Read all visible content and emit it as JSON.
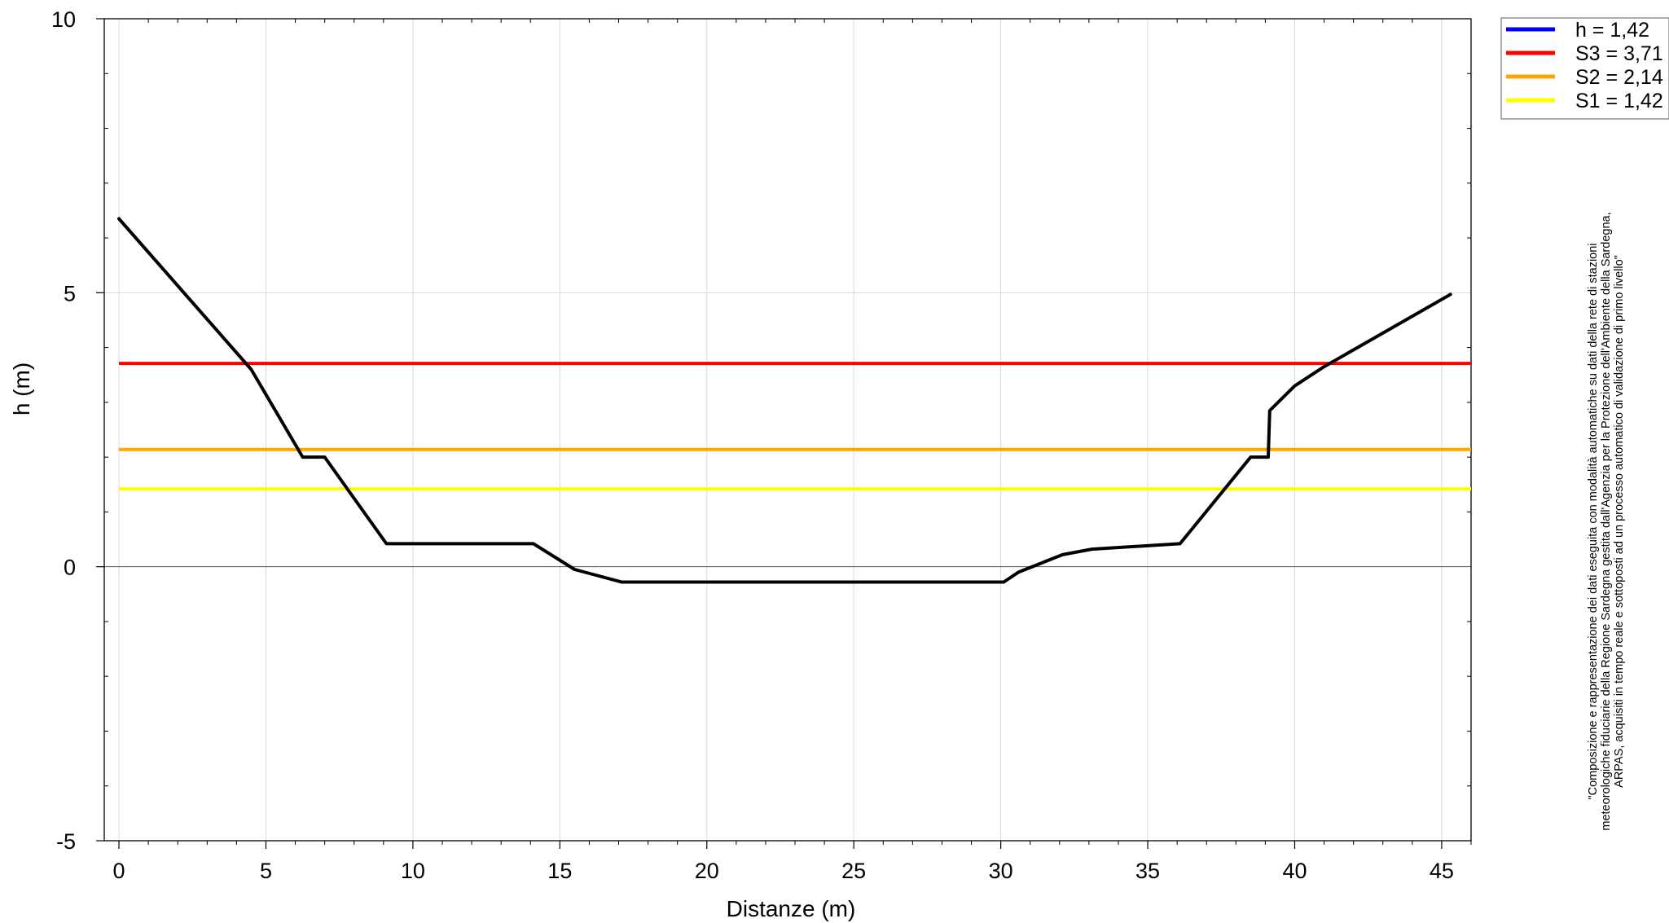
{
  "chart_data": {
    "type": "line",
    "xlabel": "Distanze (m)",
    "ylabel": "h (m)",
    "xlim": [
      -0.5,
      46.0
    ],
    "ylim": [
      -5,
      10
    ],
    "xticks": [
      0,
      5,
      10,
      15,
      20,
      25,
      30,
      35,
      40,
      45
    ],
    "yticks": [
      -5,
      0,
      5,
      10
    ],
    "grid": true,
    "legend_position": "top-right, outside plot",
    "legend": [
      {
        "label": "h = 1,42",
        "color": "#0000ff"
      },
      {
        "label": "S3 = 3,71",
        "color": "#ff0000"
      },
      {
        "label": "S2 = 2,14",
        "color": "#ffa500"
      },
      {
        "label": "S1 = 1,42",
        "color": "#ffff00"
      }
    ],
    "thresholds": [
      {
        "name": "S3",
        "y": 3.71,
        "color": "#ff0000",
        "x": [
          0,
          46.0
        ]
      },
      {
        "name": "S2",
        "y": 2.14,
        "color": "#ffa500",
        "x": [
          0,
          46.0
        ]
      },
      {
        "name": "S1",
        "y": 1.42,
        "color": "#ffff00",
        "x": [
          0,
          46.0
        ]
      }
    ],
    "profile": {
      "color": "#000000",
      "points": [
        [
          0.0,
          6.35
        ],
        [
          4.5,
          3.6
        ],
        [
          6.25,
          2.0
        ],
        [
          7.0,
          2.0
        ],
        [
          9.1,
          0.42
        ],
        [
          14.1,
          0.42
        ],
        [
          15.5,
          -0.05
        ],
        [
          17.1,
          -0.28
        ],
        [
          30.1,
          -0.28
        ],
        [
          30.6,
          -0.1
        ],
        [
          32.1,
          0.22
        ],
        [
          33.1,
          0.32
        ],
        [
          36.1,
          0.42
        ],
        [
          38.5,
          2.0
        ],
        [
          39.1,
          2.0
        ],
        [
          39.15,
          2.85
        ],
        [
          40.0,
          3.3
        ],
        [
          41.0,
          3.65
        ],
        [
          45.3,
          4.97
        ]
      ]
    }
  },
  "note_lines": [
    "\"Composizione e rappresentazione dei dati eseguita con modalità automatiche su dati della rete di stazioni",
    "meteorologiche fiduciarie della Regione Sardegna gestita dall'Agenzia per la Protezione dell'Ambiente della Sardegna,",
    "ARPAS, acquisiti in tempo reale e sottoposti ad un processo automatico di validazione di primo livello\""
  ]
}
